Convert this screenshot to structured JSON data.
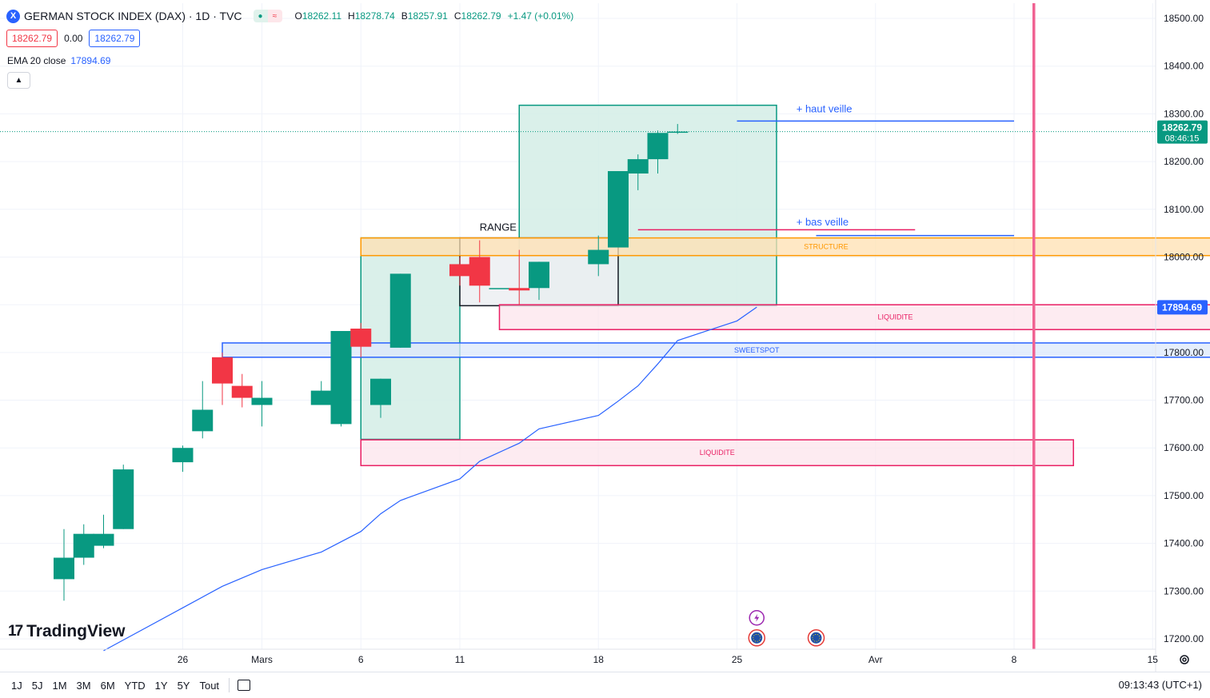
{
  "header": {
    "symbol_badge": "X",
    "title": "GERMAN STOCK INDEX (DAX) · 1D · TVC",
    "pill_up": "●",
    "pill_down": "≈",
    "ohlc": [
      {
        "k": "O",
        "v": "18262.11"
      },
      {
        "k": "H",
        "v": "18278.74"
      },
      {
        "k": "B",
        "v": "18257.91"
      },
      {
        "k": "C",
        "v": "18262.79"
      },
      {
        "k": "",
        "v": "+1.47 (+0.01%)"
      }
    ]
  },
  "price_boxes": {
    "sell": "18262.79",
    "spread": "0.00",
    "buy": "18262.79"
  },
  "indicator": {
    "name": "EMA 20 close",
    "value": "17894.69"
  },
  "collapse_icon": "chevron-up-icon",
  "logo": {
    "mark": "17",
    "text": "TradingView"
  },
  "bottom": {
    "timeframes": [
      "1J",
      "5J",
      "1M",
      "3M",
      "6M",
      "YTD",
      "1Y",
      "5Y",
      "Tout"
    ],
    "calendar_icon": "calendar-icon",
    "time": "09:13:43 (UTC+1)"
  },
  "colors": {
    "up": "#089981",
    "down": "#f23645",
    "ema": "#2962ff",
    "vline": "#f06292",
    "structure": "#ff9800",
    "sweetspot": "#2962ff",
    "liquidite": "#e91e63"
  },
  "chart_data": {
    "type": "candlestick",
    "ylim": [
      17170,
      18540
    ],
    "y_ticks": [
      "18500.00",
      "18400.00",
      "18300.00",
      "18200.00",
      "18100.00",
      "18000.00",
      "17900.00",
      "17800.00",
      "17700.00",
      "17600.00",
      "17500.00",
      "17400.00",
      "17300.00",
      "17200.00"
    ],
    "x_ticks": [
      {
        "label": "26",
        "date": "2024-02-26"
      },
      {
        "label": "Mars",
        "date": "2024-03-01"
      },
      {
        "label": "6",
        "date": "2024-03-06"
      },
      {
        "label": "11",
        "date": "2024-03-11"
      },
      {
        "label": "18",
        "date": "2024-03-18"
      },
      {
        "label": "25",
        "date": "2024-03-25"
      },
      {
        "label": "Avr",
        "date": "2024-04-01"
      },
      {
        "label": "8",
        "date": "2024-04-08"
      },
      {
        "label": "15",
        "date": "2024-04-15"
      }
    ],
    "date_range": [
      "2024-02-20",
      "2024-04-22"
    ],
    "candles": [
      {
        "date": "2024-02-20",
        "o": 17325,
        "h": 17430,
        "l": 17280,
        "c": 17370
      },
      {
        "date": "2024-02-21",
        "o": 17370,
        "h": 17440,
        "l": 17355,
        "c": 17420
      },
      {
        "date": "2024-02-22",
        "o": 17395,
        "h": 17460,
        "l": 17390,
        "c": 17420
      },
      {
        "date": "2024-02-23",
        "o": 17430,
        "h": 17565,
        "l": 17430,
        "c": 17555
      },
      {
        "date": "2024-02-26",
        "o": 17570,
        "h": 17605,
        "l": 17550,
        "c": 17600
      },
      {
        "date": "2024-02-27",
        "o": 17635,
        "h": 17740,
        "l": 17620,
        "c": 17680
      },
      {
        "date": "2024-02-28",
        "o": 17790,
        "h": 17800,
        "l": 17690,
        "c": 17735
      },
      {
        "date": "2024-02-29",
        "o": 17730,
        "h": 17755,
        "l": 17685,
        "c": 17705
      },
      {
        "date": "2024-03-01",
        "o": 17690,
        "h": 17740,
        "l": 17645,
        "c": 17705
      },
      {
        "date": "2024-03-04",
        "o": 17690,
        "h": 17740,
        "l": 17690,
        "c": 17720
      },
      {
        "date": "2024-03-05",
        "o": 17650,
        "h": 17845,
        "l": 17645,
        "c": 17845
      },
      {
        "date": "2024-03-06",
        "o": 17850,
        "h": 17862,
        "l": 17790,
        "c": 17812
      },
      {
        "date": "2024-03-07",
        "o": 17690,
        "h": 17745,
        "l": 17663,
        "c": 17745
      },
      {
        "date": "2024-03-08",
        "o": 17810,
        "h": 17965,
        "l": 17810,
        "c": 17965
      },
      {
        "date": "2024-03-11",
        "o": 17985,
        "h": 18000,
        "l": 17940,
        "c": 17960
      },
      {
        "date": "2024-03-12",
        "o": 18000,
        "h": 18035,
        "l": 17905,
        "c": 17940
      },
      {
        "date": "2024-03-13",
        "o": 17935,
        "h": 17935,
        "l": 17935,
        "c": 17935
      },
      {
        "date": "2024-03-14",
        "o": 17935,
        "h": 18015,
        "l": 17900,
        "c": 17930
      },
      {
        "date": "2024-03-15",
        "o": 17935,
        "h": 17990,
        "l": 17910,
        "c": 17990
      },
      {
        "date": "2024-03-18",
        "o": 17985,
        "h": 18045,
        "l": 17960,
        "c": 18015
      },
      {
        "date": "2024-03-19",
        "o": 18020,
        "h": 18180,
        "l": 18020,
        "c": 18180
      },
      {
        "date": "2024-03-20",
        "o": 18175,
        "h": 18215,
        "l": 18140,
        "c": 18205
      },
      {
        "date": "2024-03-21",
        "o": 18205,
        "h": 18265,
        "l": 18175,
        "c": 18260
      },
      {
        "date": "2024-03-22",
        "o": 18262.11,
        "h": 18278.74,
        "l": 18257.91,
        "c": 18262.79
      }
    ],
    "ema": {
      "name": "EMA 20 close",
      "points": [
        {
          "date": "2024-02-22",
          "y": 17175
        },
        {
          "date": "2024-02-26",
          "y": 17265
        },
        {
          "date": "2024-02-28",
          "y": 17310
        },
        {
          "date": "2024-03-01",
          "y": 17345
        },
        {
          "date": "2024-03-04",
          "y": 17382
        },
        {
          "date": "2024-03-06",
          "y": 17425
        },
        {
          "date": "2024-03-07",
          "y": 17462
        },
        {
          "date": "2024-03-08",
          "y": 17490
        },
        {
          "date": "2024-03-11",
          "y": 17535
        },
        {
          "date": "2024-03-12",
          "y": 17572
        },
        {
          "date": "2024-03-14",
          "y": 17610
        },
        {
          "date": "2024-03-15",
          "y": 17640
        },
        {
          "date": "2024-03-18",
          "y": 17668
        },
        {
          "date": "2024-03-19",
          "y": 17698
        },
        {
          "date": "2024-03-20",
          "y": 17730
        },
        {
          "date": "2024-03-21",
          "y": 17776
        },
        {
          "date": "2024-03-22",
          "y": 17825
        },
        {
          "date": "2024-03-25",
          "y": 17866
        },
        {
          "date": "2024-03-26",
          "y": 17895
        }
      ]
    },
    "current_price": {
      "value": 18262.79,
      "label": "18262.79",
      "countdown": "08:46:15"
    },
    "ema_label": {
      "value": 17894.69,
      "label": "17894.69"
    },
    "vertical_line_date": "2024-04-09",
    "zones": [
      {
        "label": "STRUCTURE",
        "from": "2024-03-06",
        "to": "2024-04-22",
        "top": 18040,
        "bottom": 18003,
        "color": "#ff9800",
        "fill": "#ffe0b2"
      },
      {
        "label": "LIQUIDITE",
        "from": "2024-03-13",
        "to": "2024-04-22",
        "top": 17900,
        "bottom": 17848,
        "color": "#e91e63",
        "fill": "#fce4ec"
      },
      {
        "label": "SWEETSPOT",
        "from": "2024-02-28",
        "to": "2024-04-22",
        "top": 17820,
        "bottom": 17790,
        "color": "#2962ff",
        "fill": "#dce8fb"
      },
      {
        "label": "LIQUIDITE",
        "from": "2024-03-06",
        "to": "2024-04-11",
        "top": 17617,
        "bottom": 17563,
        "color": "#e91e63",
        "fill": "#fce4ec"
      }
    ],
    "boxes": [
      {
        "from": "2024-03-06",
        "to": "2024-03-11",
        "top": 18040,
        "bottom": 17618,
        "color": "#089981",
        "fill": "#d4ede6"
      },
      {
        "from": "2024-03-14",
        "to": "2024-03-27",
        "top": 18318,
        "bottom": 17898,
        "color": "#089981",
        "fill": "#d4ede6"
      },
      {
        "from": "2024-03-11",
        "to": "2024-03-19",
        "top": 18040,
        "bottom": 17898,
        "color": "#131722",
        "fill": "#eceff2"
      }
    ],
    "annotations": [
      {
        "text": "RANGE",
        "date": "2024-03-12",
        "y": 18055
      },
      {
        "text": "+ haut veille",
        "date": "2024-03-28",
        "y": 18303
      },
      {
        "text": "+ bas veille",
        "date": "2024-03-28",
        "y": 18066
      }
    ],
    "hlines": [
      {
        "from": "2024-03-25",
        "to": "2024-04-08",
        "y": 18285,
        "color": "#2962ff"
      },
      {
        "from": "2024-03-29",
        "to": "2024-04-08",
        "y": 18045,
        "color": "#2962ff"
      },
      {
        "from": "2024-03-20",
        "to": "2024-04-03",
        "y": 18057,
        "color": "#e91e63"
      }
    ],
    "event_icons": [
      {
        "date": "2024-03-26",
        "y": 17244,
        "kind": "bolt-icon"
      },
      {
        "date": "2024-03-26",
        "y": 17202,
        "kind": "eu-flag-icon"
      },
      {
        "date": "2024-03-29",
        "y": 17202,
        "kind": "eu-flag-icon"
      }
    ],
    "grid": true
  }
}
